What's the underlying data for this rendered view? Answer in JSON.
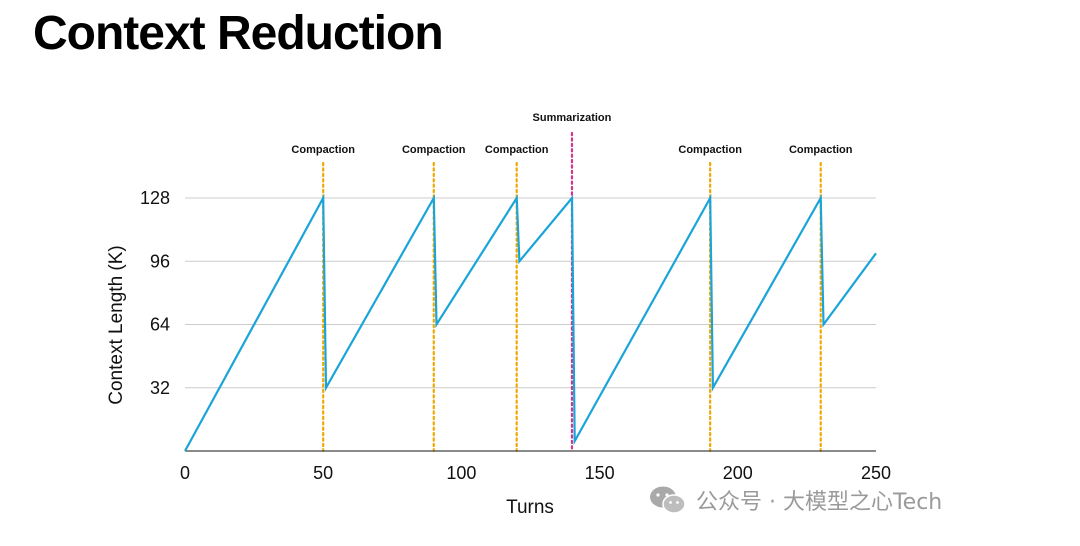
{
  "title": "Context Reduction",
  "watermark": {
    "text": "公众号 · 大模型之心Tech",
    "icon": "wechat-icon"
  },
  "colors": {
    "line": "#1aa4d8",
    "compaction": "#f0a800",
    "summarization": "#d6338a",
    "grid": "#cccccc",
    "axis": "#444444"
  },
  "chart_data": {
    "type": "line",
    "title": "Context Reduction",
    "xlabel": "Turns",
    "ylabel": "Context Length (K)",
    "xlim": [
      0,
      250
    ],
    "ylim": [
      0,
      128
    ],
    "xticks": [
      0,
      50,
      100,
      150,
      200,
      250
    ],
    "yticks": [
      32,
      64,
      96,
      128
    ],
    "grid": "horizontal",
    "series": [
      {
        "x": [
          0,
          50,
          51,
          90,
          91,
          120,
          121,
          140,
          141,
          190,
          191,
          230,
          231,
          250
        ],
        "y": [
          0,
          128,
          32,
          128,
          64,
          128,
          96,
          128,
          5,
          128,
          32,
          128,
          64,
          100
        ]
      }
    ],
    "events": [
      {
        "label": "Compaction",
        "x": 50,
        "kind": "compaction"
      },
      {
        "label": "Compaction",
        "x": 90,
        "kind": "compaction"
      },
      {
        "label": "Compaction",
        "x": 120,
        "kind": "compaction"
      },
      {
        "label": "Summarization",
        "x": 140,
        "kind": "summarization"
      },
      {
        "label": "Compaction",
        "x": 190,
        "kind": "compaction"
      },
      {
        "label": "Compaction",
        "x": 230,
        "kind": "compaction"
      }
    ]
  }
}
